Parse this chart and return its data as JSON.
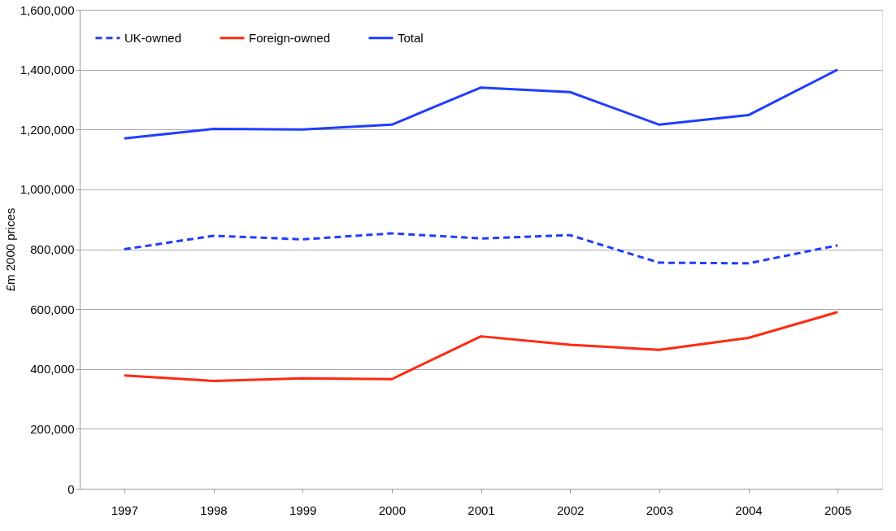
{
  "chart_data": {
    "type": "line",
    "ylabel": "£m 2000 prices",
    "categories": [
      "1997",
      "1998",
      "1999",
      "2000",
      "2001",
      "2002",
      "2003",
      "2004",
      "2005"
    ],
    "series": [
      {
        "name": "UK-owned",
        "color": "#1f3dff",
        "line_style": "dashed",
        "values": [
          800000,
          845000,
          833000,
          853000,
          836000,
          847000,
          755000,
          753000,
          813000
        ]
      },
      {
        "name": "Foreign-owned",
        "color": "#ff2a10",
        "line_style": "solid",
        "values": [
          378000,
          360000,
          369000,
          366000,
          509000,
          481000,
          464000,
          504000,
          590000
        ]
      },
      {
        "name": "Total",
        "color": "#1f3dff",
        "line_style": "solid",
        "values": [
          1170000,
          1202000,
          1200000,
          1216000,
          1340000,
          1325000,
          1216000,
          1248000,
          1400000
        ]
      }
    ],
    "ylim": [
      0,
      1600000
    ],
    "yticks": [
      0,
      {
        "value": 200000,
        "label": "200,000"
      },
      {
        "value": 400000,
        "label": "400,000"
      },
      {
        "value": 600000,
        "label": "600,000"
      },
      {
        "value": 800000,
        "label": "800,000"
      },
      {
        "value": 1000000,
        "label": "1,000,000"
      },
      {
        "value": 1200000,
        "label": "1,200,000"
      },
      {
        "value": 1400000,
        "label": "1,400,000"
      },
      {
        "value": 1600000,
        "label": "1,600,000"
      }
    ],
    "grid": "y",
    "legend": "top left"
  }
}
